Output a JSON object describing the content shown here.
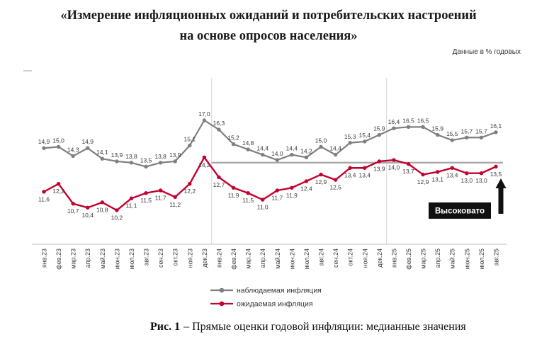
{
  "header": {
    "title_line1": "«Измерение инфляционных ожиданий и потребительских настроений",
    "title_line2": "на основе опросов населения»",
    "units_note": "Данные в % годовых"
  },
  "chart_data": {
    "type": "line",
    "title": "Прямые оценки годовой инфляции: медианные значения",
    "unit": "% годовых",
    "categories": [
      "янв.23",
      "фев.23",
      "мар.23",
      "апр.23",
      "май.23",
      "июн.23",
      "июл.23",
      "авг.23",
      "сен.23",
      "окт.23",
      "ноя.23",
      "дек.23",
      "янв.24",
      "фев.24",
      "мар.24",
      "апр.24",
      "май.24",
      "июн.24",
      "июл.24",
      "авг.24",
      "сен.24",
      "окт.24",
      "ноя.24",
      "дек.24",
      "янв.25",
      "фев.25",
      "мар.25",
      "апр.25",
      "май.25",
      "июн.25",
      "июл.25",
      "авг.25"
    ],
    "series": [
      {
        "name": "наблюдаемая инфляция",
        "color": "#7f7f7f",
        "values": [
          14.9,
          15.0,
          14.3,
          14.9,
          14.1,
          13.9,
          13.8,
          13.5,
          13.8,
          13.9,
          15.1,
          17.0,
          16.3,
          15.2,
          14.8,
          14.4,
          14.0,
          14.4,
          14.2,
          15.0,
          14.4,
          15.3,
          15.4,
          15.9,
          16.4,
          16.5,
          16.5,
          15.9,
          15.5,
          15.7,
          15.7,
          16.1
        ]
      },
      {
        "name": "ожидаемая инфляция",
        "color": "#c4002e",
        "values": [
          11.6,
          12.2,
          10.7,
          10.4,
          10.8,
          10.2,
          11.1,
          11.5,
          11.7,
          11.2,
          12.2,
          14.2,
          12.7,
          11.9,
          11.5,
          11.0,
          11.7,
          11.9,
          12.4,
          12.9,
          12.5,
          13.4,
          13.4,
          13.9,
          14.0,
          13.7,
          12.9,
          13.1,
          13.4,
          13.0,
          13.0,
          13.5
        ]
      }
    ],
    "label_decimal_separator": ",",
    "ylim": [
      9.5,
      17.8
    ],
    "legend_position": "bottom",
    "grid": "vertical year separators",
    "year_separator_positions": [
      11.5,
      23.5
    ],
    "reference_line": {
      "value": 13.8,
      "color": "#a6a6a6",
      "from_position": 11.5
    },
    "annotation": {
      "label": "Высоковато",
      "badge_color": "#101010",
      "text_color": "#ffffff",
      "arrow": "up"
    }
  },
  "caption": {
    "label": "Рис. 1",
    "text": "– Прямые оценки годовой инфляции: медианные значения"
  }
}
